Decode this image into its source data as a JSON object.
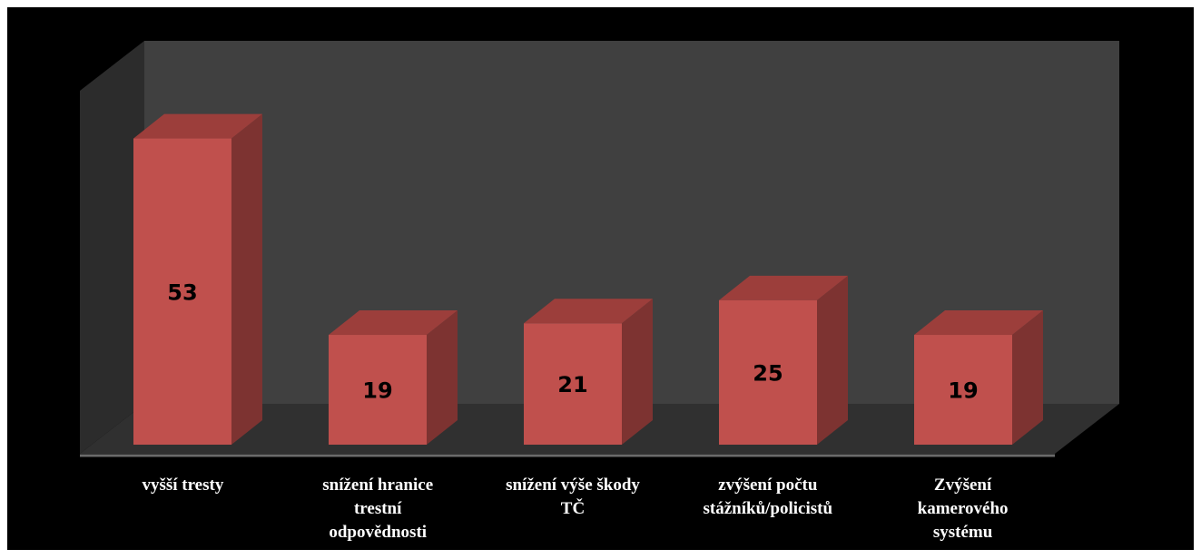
{
  "chart_data": {
    "type": "bar",
    "style": "3d-column",
    "categories": [
      "vyšší tresty",
      "snížení hranice trestní odpovědnosti",
      "snížení výše škody TČ",
      "zvýšení počtu stážníků/policistů",
      "Zvýšení kamerového systému"
    ],
    "category_lines": [
      [
        "vyšší tresty"
      ],
      [
        "snížení hranice",
        "trestní",
        "odpovědnosti"
      ],
      [
        "snížení výše škody",
        "TČ"
      ],
      [
        "zvýšení počtu",
        "stážníků/policistů"
      ],
      [
        "Zvýšení",
        "kamerového",
        "systému"
      ]
    ],
    "values": [
      53,
      19,
      21,
      25,
      19
    ],
    "title": "",
    "xlabel": "",
    "ylabel": "",
    "ylim": [
      0,
      60
    ],
    "grid": false,
    "legend": "none",
    "data_labels": true,
    "colors": {
      "background": "#000000",
      "wall": "#404040",
      "side_wall": "#2c2c2c",
      "floor": "#303030",
      "floor_edge": "#6a6a6a",
      "bar_front": "#c0504d",
      "bar_top": "#9c3e3b",
      "bar_side": "#7d3331",
      "value_text": "#000000",
      "category_text": "#ffffff",
      "frame": "#ffffff"
    }
  }
}
